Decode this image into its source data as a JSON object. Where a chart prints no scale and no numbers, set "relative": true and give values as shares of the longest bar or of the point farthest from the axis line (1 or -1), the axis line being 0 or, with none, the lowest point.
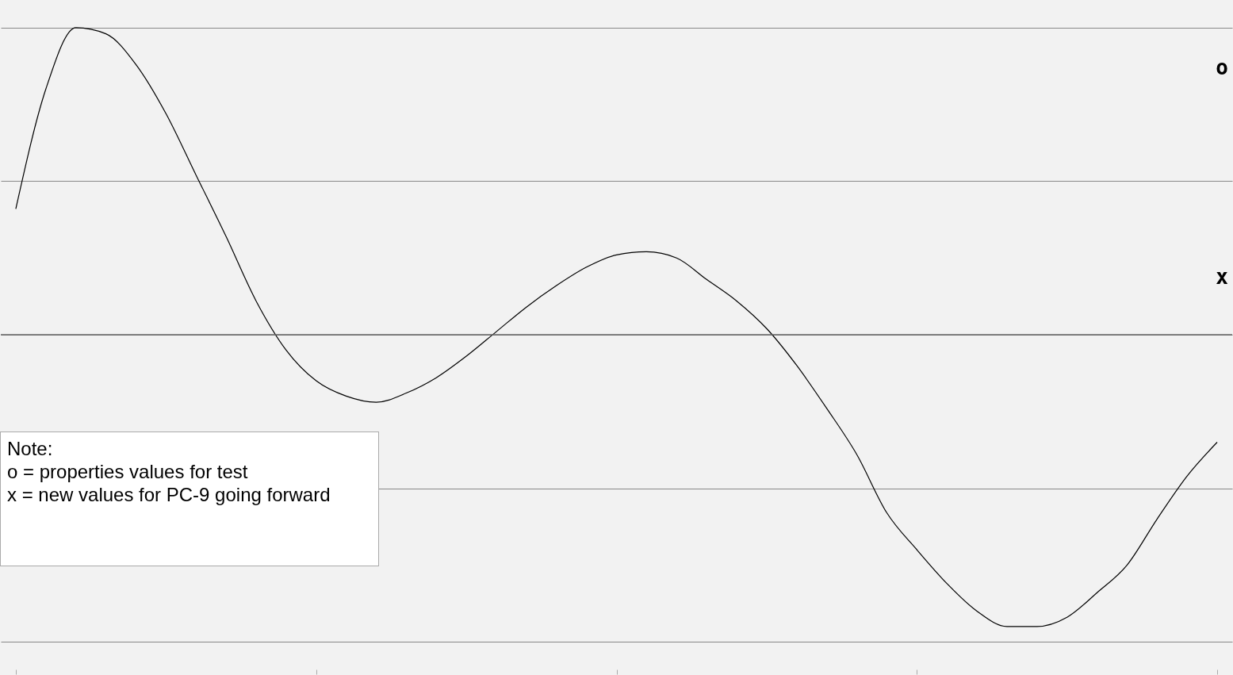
{
  "chart_data": {
    "type": "line",
    "relative": true,
    "grid": "y",
    "color": "#000000",
    "categories": [
      null,
      null,
      null,
      null,
      null,
      null,
      null,
      null,
      null,
      null,
      null,
      null,
      null,
      null,
      null,
      null,
      null,
      null,
      null,
      null,
      null,
      null,
      null,
      null,
      null,
      null,
      null,
      null,
      null,
      null,
      null,
      null,
      null,
      null,
      null,
      null,
      null,
      null,
      null,
      null,
      null
    ],
    "values": [
      0.41,
      0.8,
      1,
      0.98,
      0.88,
      0.72,
      0.52,
      0.32,
      0.11,
      -0.05,
      -0.15,
      -0.2,
      -0.22,
      -0.19,
      -0.14,
      -0.07,
      0.01,
      0.09,
      0.16,
      0.22,
      0.26,
      0.27,
      0.25,
      0.18,
      0.11,
      0.02,
      -0.1,
      -0.24,
      -0.39,
      -0.58,
      -0.7,
      -0.81,
      -0.9,
      -0.95,
      -0.95,
      -0.92,
      -0.84,
      -0.75,
      -0.6,
      -0.46,
      -0.35
    ],
    "annotations": [
      "o",
      "x",
      "Note:\no =  properties values for test\nx =  new values for PC-9 going forward"
    ]
  }
}
